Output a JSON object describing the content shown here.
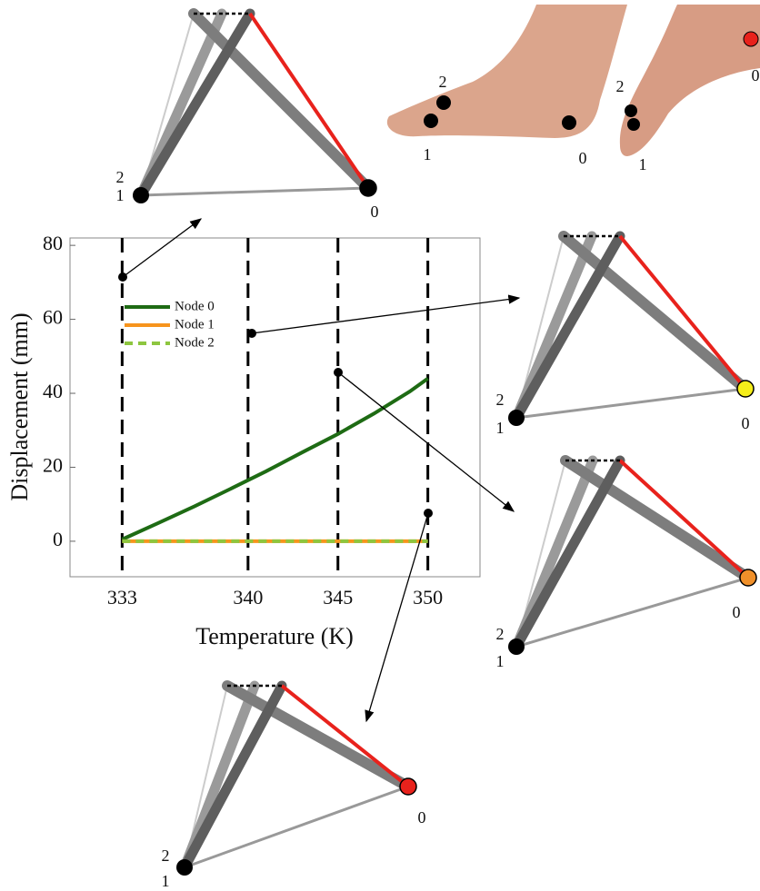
{
  "chart_data": {
    "type": "line",
    "x_label": "Temperature (K)",
    "y_label": "Displacement (mm)",
    "x": [
      333,
      335,
      337,
      339,
      341,
      343,
      345,
      347,
      349,
      350
    ],
    "series": [
      {
        "name": "Node 0",
        "color": "#1e6b14",
        "dash": false,
        "values": [
          0.5,
          4.9,
          9.4,
          14.1,
          18.9,
          24.0,
          29.0,
          34.5,
          40.5,
          44.0
        ]
      },
      {
        "name": "Node 1",
        "color": "#f7941d",
        "dash": false,
        "values": [
          0,
          0,
          0,
          0,
          0,
          0,
          0,
          0,
          0,
          0
        ]
      },
      {
        "name": "Node 2",
        "color": "#8dc63f",
        "dash": true,
        "values": [
          0,
          0,
          0,
          0,
          0,
          0,
          0,
          0,
          0,
          0
        ]
      }
    ],
    "xlim": [
      330.1,
      352.9
    ],
    "ylim": [
      -9.6,
      82
    ],
    "xticks": [
      333,
      340,
      345,
      350
    ],
    "yticks": [
      0,
      20,
      40,
      60,
      80
    ],
    "vertical_dashed_lines": true
  },
  "diagrams": [
    {
      "labels": [
        "2",
        "1",
        "0"
      ]
    },
    {
      "labels": [
        "2",
        "1",
        "0"
      ]
    },
    {
      "labels": [
        "2",
        "1",
        "0"
      ]
    },
    {
      "labels": [
        "2",
        "1",
        "0"
      ]
    }
  ],
  "foot_photo": {
    "labels": [
      "2",
      "1",
      "0",
      "2",
      "1",
      "0"
    ]
  }
}
